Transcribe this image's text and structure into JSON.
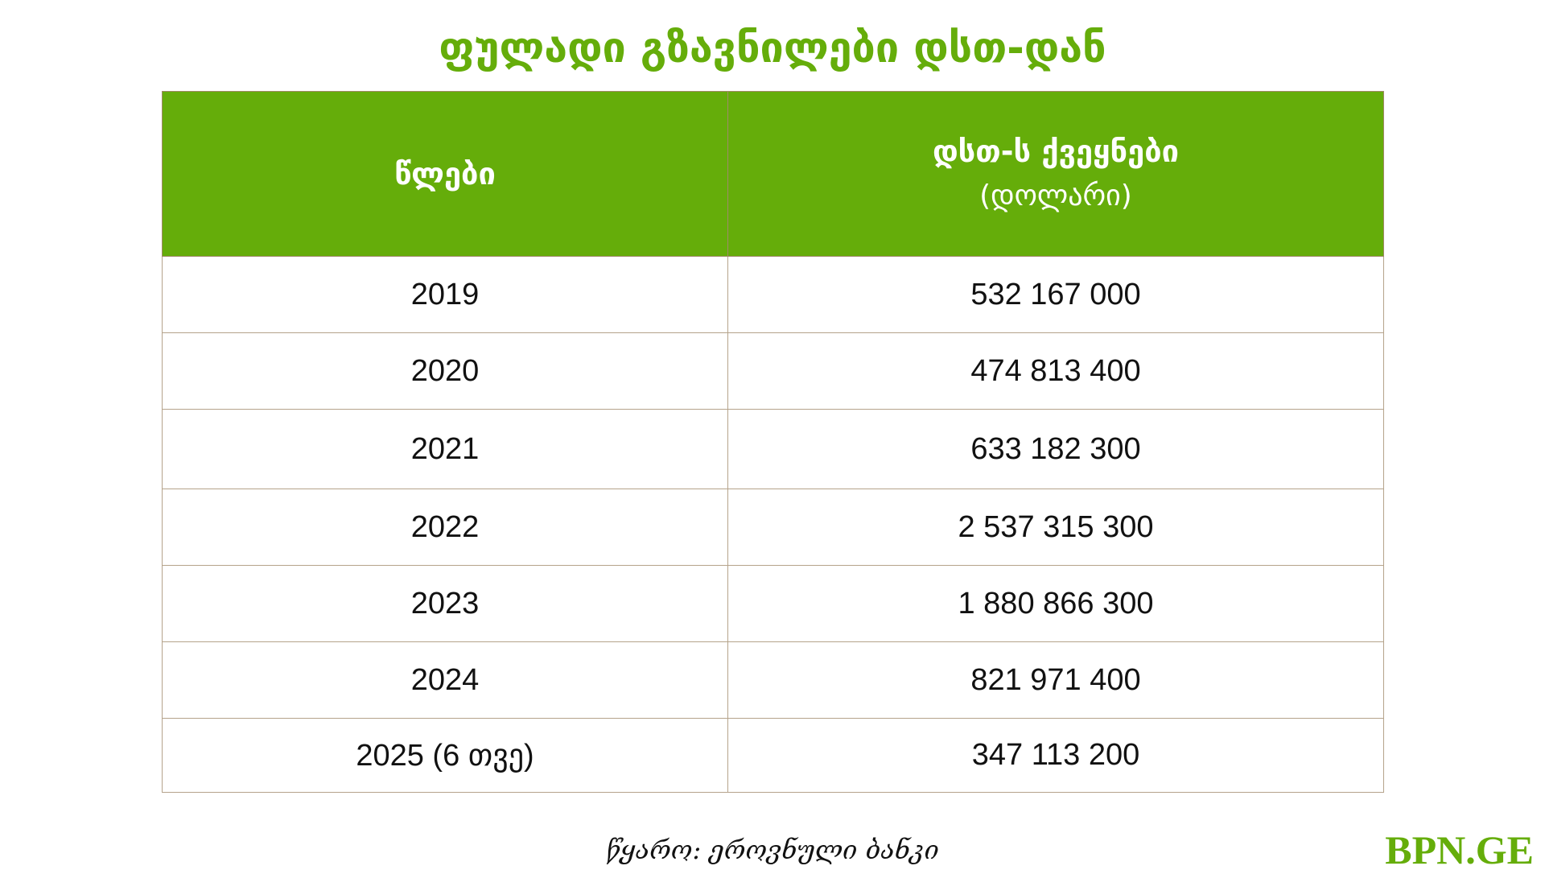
{
  "title": "ფულადი გზავნილები დსთ-დან",
  "brand": "BPN.GE",
  "source": "წყარო: ეროვნული ბანკი",
  "colors": {
    "accent": "#65ad0a",
    "border": "#b5a38b"
  },
  "chart_data": {
    "type": "table",
    "title": "ფულადი გზავნილები დსთ-დან",
    "columns": [
      "წლები",
      "დსთ-ს ქვეყნები"
    ],
    "column_units": [
      "",
      "(დოლარი)"
    ],
    "rows": [
      {
        "year": "2019",
        "value": "532 167 000"
      },
      {
        "year": "2020",
        "value": "474 813 400"
      },
      {
        "year": "2021",
        "value": "633 182 300"
      },
      {
        "year": "2022",
        "value": "2 537 315 300"
      },
      {
        "year": "2023",
        "value": "1 880 866 300"
      },
      {
        "year": "2024",
        "value": "821 971 400"
      },
      {
        "year": "2025 (6 თვე)",
        "value": "347 113 200"
      }
    ],
    "values_numeric": [
      532167000,
      474813400,
      633182300,
      2537315300,
      1880866300,
      821971400,
      347113200
    ]
  }
}
